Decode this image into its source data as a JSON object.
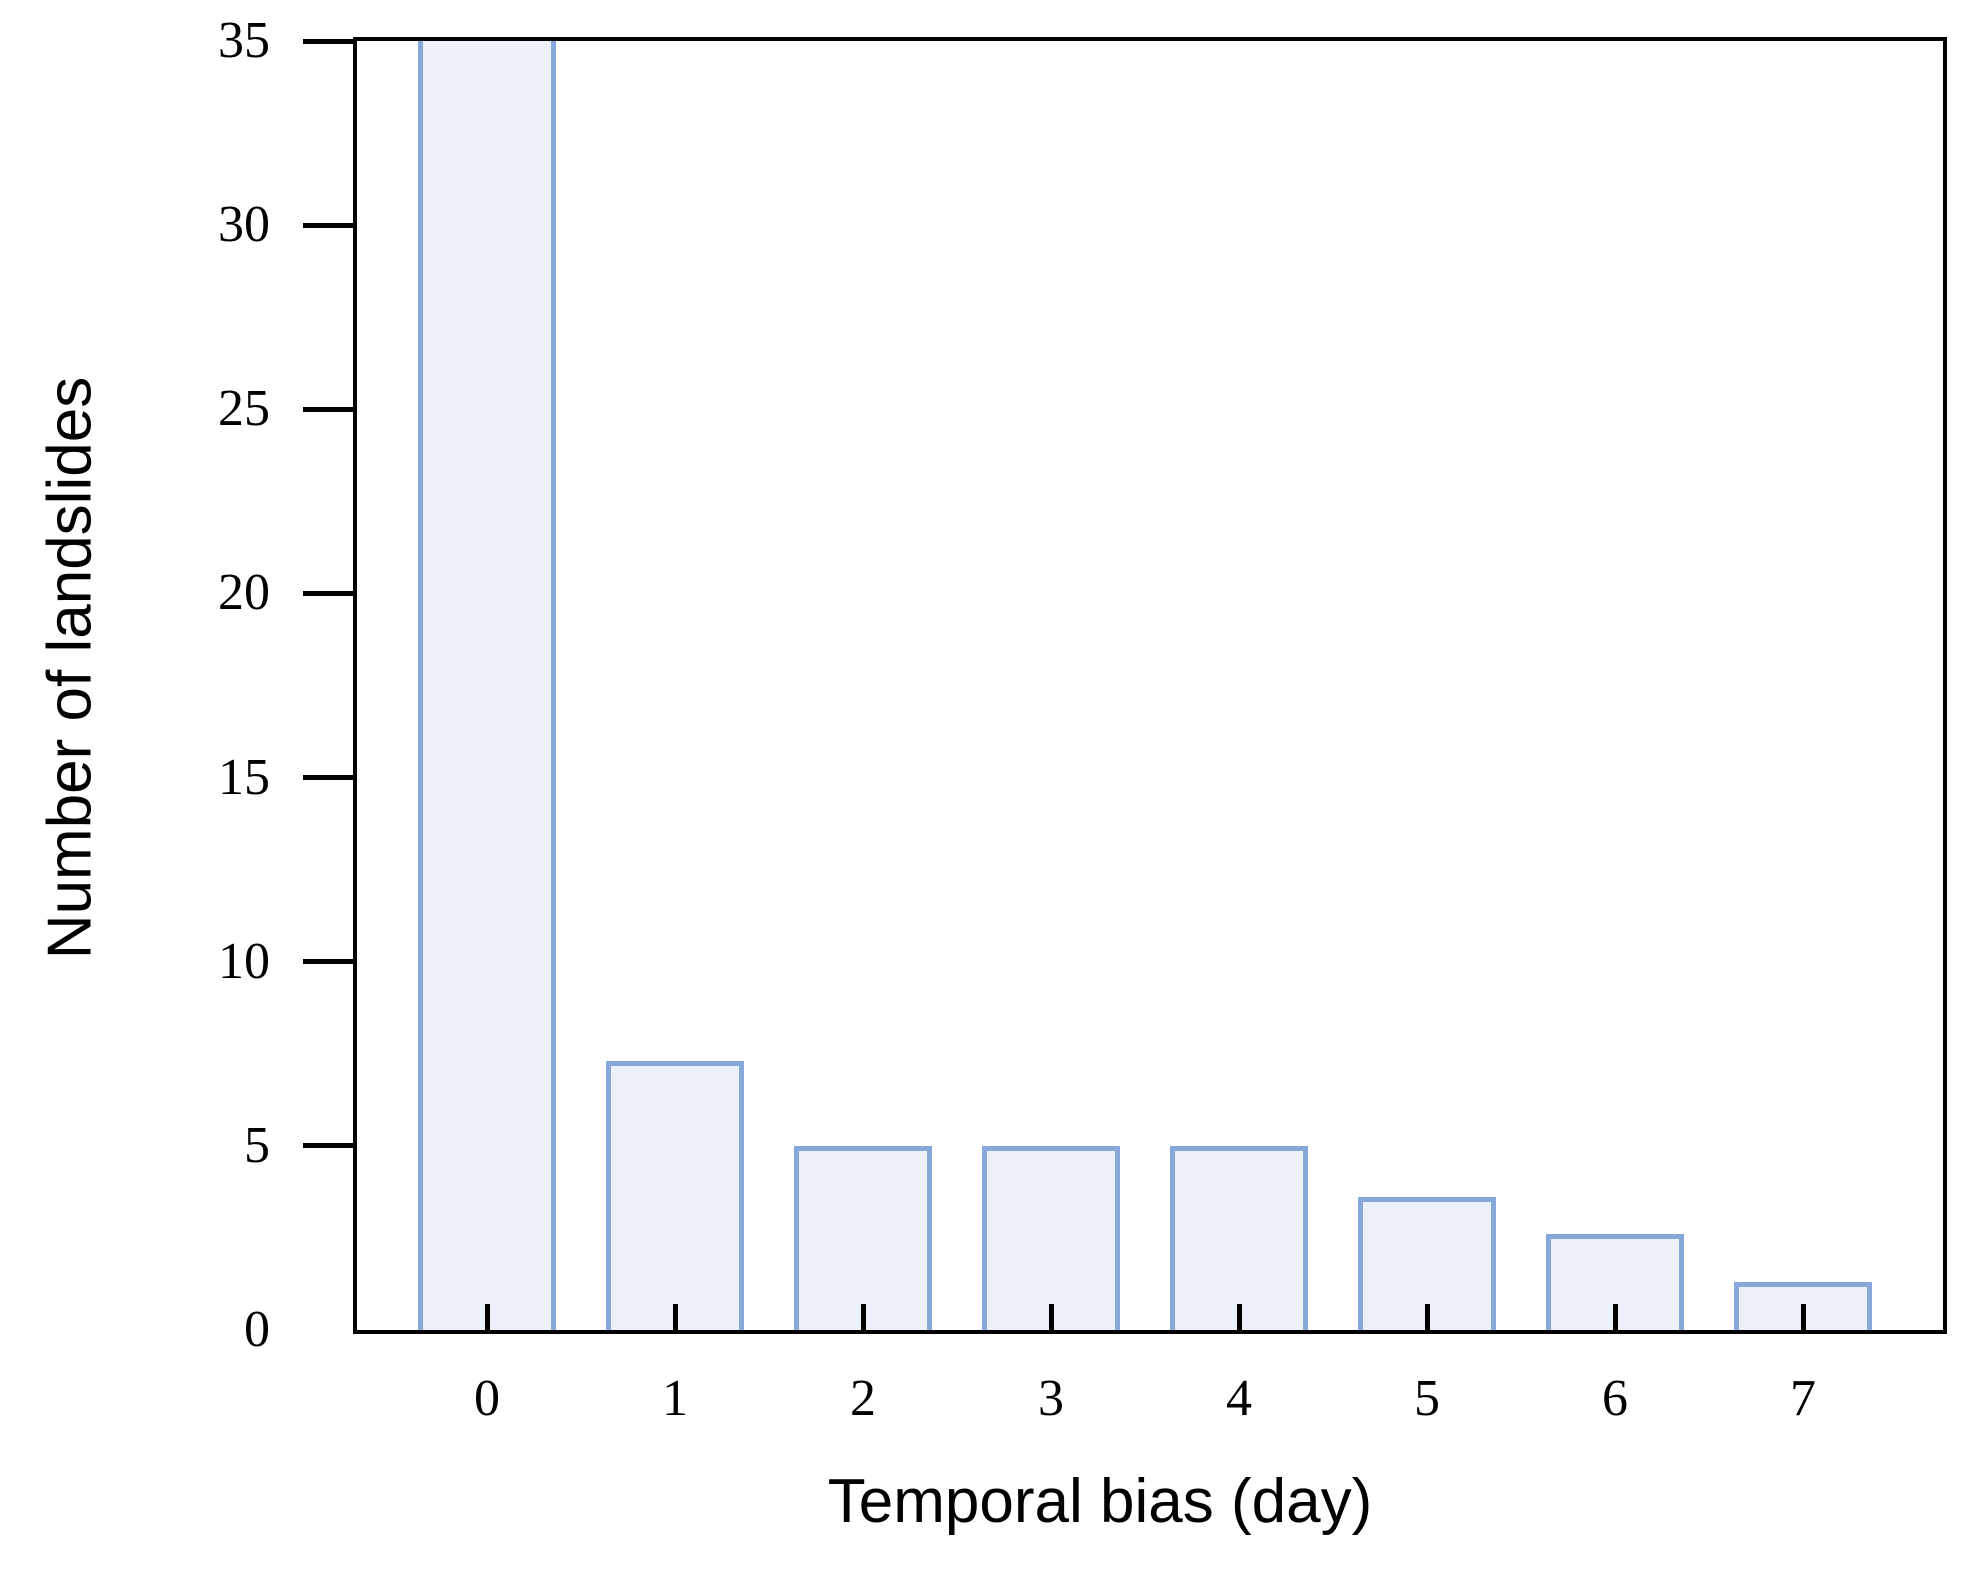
{
  "chart_data": {
    "type": "bar",
    "title": "",
    "xlabel": "Temporal bias (day)",
    "ylabel": "Number of landslides",
    "categories": [
      "0",
      "1",
      "2",
      "3",
      "4",
      "5",
      "6",
      "7"
    ],
    "values": [
      35,
      7.3,
      5,
      5,
      5,
      3.6,
      2.6,
      1.3
    ],
    "clipped_at_top": [
      true,
      false,
      false,
      false,
      false,
      false,
      false,
      false
    ],
    "note": "Bar at x=0 extends above the top of the y-axis; it is clipped at 35 in the figure.",
    "ylim": [
      0,
      35
    ],
    "yticks": [
      0,
      5,
      10,
      15,
      20,
      25,
      30,
      35
    ],
    "grid": false,
    "legend": null,
    "colors": {
      "bar_fill": "#ecf1f9",
      "bar_border": "#86a9da",
      "axis": "#000000",
      "text": "#000000",
      "background": "#ffffff"
    }
  }
}
